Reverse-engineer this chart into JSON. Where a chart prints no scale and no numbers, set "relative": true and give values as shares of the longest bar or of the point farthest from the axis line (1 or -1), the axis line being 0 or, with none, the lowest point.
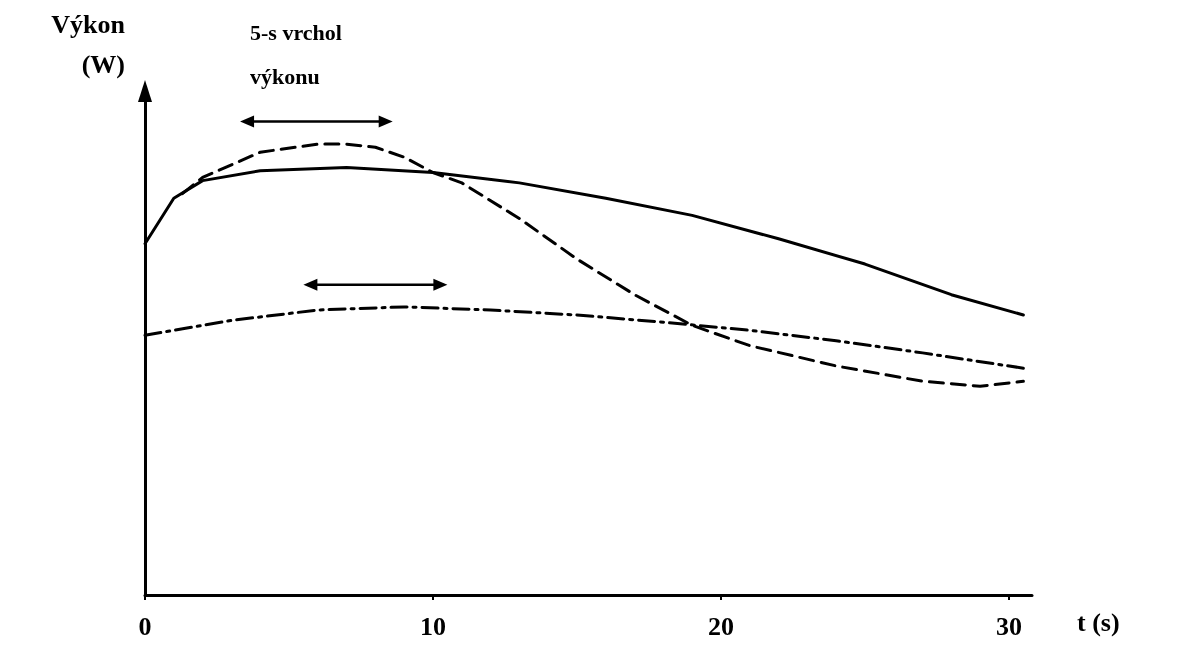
{
  "chart_data": {
    "type": "line",
    "relative": true,
    "xlabel": "t (s)",
    "ylabel": "Výkon\n(W)",
    "annotations": [
      "5-s vrchol výkonu"
    ],
    "xlim": [
      0,
      30.8
    ],
    "xticks": [
      0,
      10,
      20,
      30
    ],
    "grid": false,
    "marker": "none",
    "series": [
      {
        "color": "#000000",
        "line_style": "solid",
        "x": [
          0,
          1,
          2,
          4,
          7,
          10,
          13,
          16,
          19,
          22,
          25,
          28,
          30.5
        ],
        "values": [
          0.779,
          0.88,
          0.919,
          0.941,
          0.948,
          0.937,
          0.914,
          0.88,
          0.842,
          0.79,
          0.734,
          0.666,
          0.621
        ]
      },
      {
        "color": "#000000",
        "line_style": "dashed",
        "x": [
          1.3,
          2,
          4,
          6,
          7,
          8,
          9,
          10,
          11,
          13,
          15,
          17,
          19,
          21,
          24,
          27,
          29,
          30.5
        ],
        "values": [
          0.89,
          0.926,
          0.982,
          1,
          1,
          0.993,
          0.971,
          0.937,
          0.914,
          0.835,
          0.745,
          0.666,
          0.598,
          0.553,
          0.508,
          0.474,
          0.463,
          0.474
        ]
      },
      {
        "color": "#000000",
        "line_style": "dashdot",
        "x": [
          0,
          3,
          6,
          9,
          12,
          15,
          18,
          21,
          24,
          27,
          30.5
        ],
        "values": [
          0.576,
          0.609,
          0.632,
          0.639,
          0.632,
          0.621,
          0.605,
          0.587,
          0.564,
          0.537,
          0.503
        ]
      }
    ]
  }
}
